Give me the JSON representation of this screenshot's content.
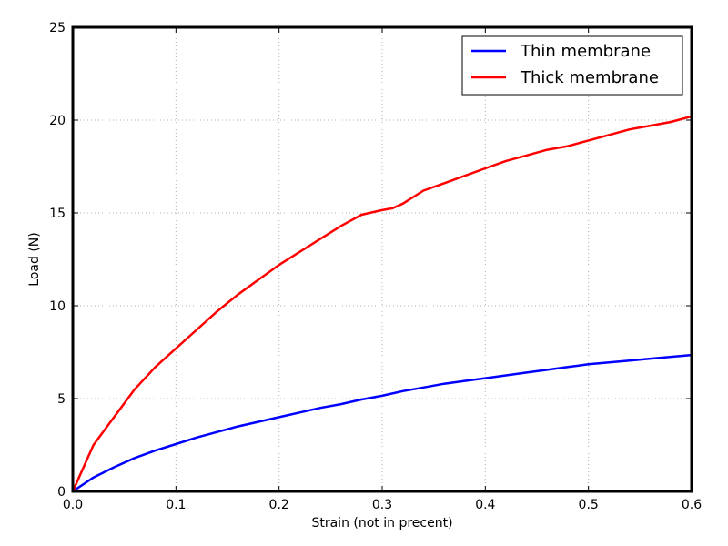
{
  "chart_data": {
    "type": "line",
    "title": "",
    "xlabel": "Strain (not in precent)",
    "ylabel": "Load (N)",
    "xlim": [
      0,
      0.6
    ],
    "ylim": [
      0,
      25
    ],
    "x_ticks": [
      "0.0",
      "0.1",
      "0.2",
      "0.3",
      "0.4",
      "0.5",
      "0.6"
    ],
    "y_ticks": [
      "0",
      "5",
      "10",
      "15",
      "20",
      "25"
    ],
    "grid": true,
    "legend_position": "top-right",
    "series": [
      {
        "name": "Thin membrane",
        "color": "#0000ff",
        "x": [
          0,
          0.02,
          0.04,
          0.06,
          0.08,
          0.1,
          0.12,
          0.14,
          0.16,
          0.18,
          0.2,
          0.22,
          0.24,
          0.26,
          0.28,
          0.3,
          0.32,
          0.34,
          0.36,
          0.38,
          0.4,
          0.42,
          0.44,
          0.46,
          0.48,
          0.5,
          0.52,
          0.54,
          0.56,
          0.58,
          0.6
        ],
        "y": [
          0,
          0.75,
          1.3,
          1.8,
          2.2,
          2.55,
          2.9,
          3.2,
          3.5,
          3.75,
          4.0,
          4.25,
          4.5,
          4.7,
          4.95,
          5.15,
          5.4,
          5.6,
          5.8,
          5.95,
          6.1,
          6.25,
          6.4,
          6.55,
          6.7,
          6.85,
          6.95,
          7.05,
          7.15,
          7.25,
          7.35
        ]
      },
      {
        "name": "Thick membrane",
        "color": "#ff0000",
        "x": [
          0,
          0.02,
          0.04,
          0.06,
          0.08,
          0.1,
          0.12,
          0.14,
          0.16,
          0.18,
          0.2,
          0.22,
          0.24,
          0.26,
          0.28,
          0.3,
          0.31,
          0.32,
          0.34,
          0.36,
          0.38,
          0.4,
          0.42,
          0.44,
          0.46,
          0.48,
          0.5,
          0.52,
          0.54,
          0.56,
          0.58,
          0.6
        ],
        "y": [
          0,
          2.5,
          4.0,
          5.5,
          6.7,
          7.7,
          8.7,
          9.7,
          10.6,
          11.4,
          12.2,
          12.9,
          13.6,
          14.3,
          14.9,
          15.15,
          15.25,
          15.5,
          16.2,
          16.6,
          17.0,
          17.4,
          17.8,
          18.1,
          18.4,
          18.6,
          18.9,
          19.2,
          19.5,
          19.7,
          19.9,
          20.2
        ]
      }
    ]
  }
}
